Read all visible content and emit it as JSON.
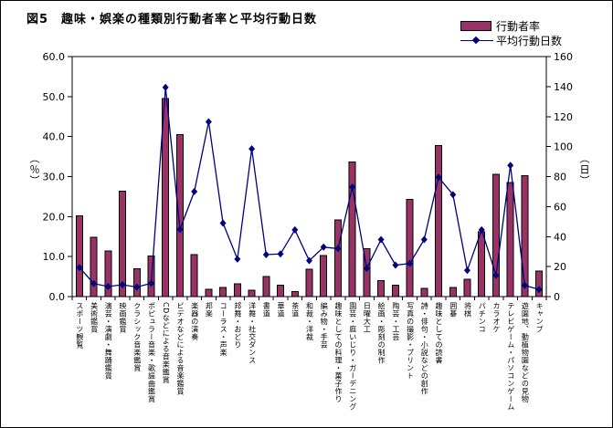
{
  "title": "図5　趣味・娯楽の種類別行動者率と平均行動日数",
  "legend": {
    "items": [
      {
        "label": "行動者率",
        "type": "bar",
        "color": "#993366"
      },
      {
        "label": "平均行動日数",
        "type": "line",
        "color": "#000080"
      }
    ]
  },
  "chart_data": {
    "type": "bar",
    "title": "図5　趣味・娯楽の種類別行動者率と平均行動日数",
    "grid": false,
    "legend_position": "top-right",
    "categories": [
      "スポーツ観覧",
      "美術鑑賞",
      "演芸・演劇・舞踊鑑賞",
      "映画鑑賞",
      "クラシック音楽鑑賞",
      "ポピュラー音楽・歌謡曲鑑賞",
      "CDなどによる音楽鑑賞",
      "ビデオなどによる音楽鑑賞",
      "楽器の演奏",
      "邦楽",
      "コーラス・声楽",
      "邦舞・おどり",
      "洋舞・社交ダンス",
      "書道",
      "華道",
      "茶道",
      "和裁・洋裁",
      "編み物・手芸",
      "趣味としての料理・菓子作り",
      "園芸・庭いじり・ガーデニング",
      "日曜大工",
      "絵画・彫刻の制作",
      "陶芸・工芸",
      "写真の撮影・プリント",
      "詩・俳句・小説などの創作",
      "趣味としての読書",
      "囲碁",
      "将棋",
      "パチンコ",
      "カラオケ",
      "テレビゲーム・パソコンゲーム",
      "遊園地、動植物園などの見物",
      "キャンプ"
    ],
    "series": [
      {
        "name": "行動者率",
        "type": "bar",
        "axis": "left",
        "color": "#993366",
        "values": [
          20.2,
          14.8,
          11.4,
          26.3,
          7.0,
          10.2,
          49.5,
          40.5,
          10.5,
          1.8,
          2.3,
          3.2,
          1.6,
          5.0,
          2.9,
          1.3,
          6.9,
          10.3,
          19.2,
          33.6,
          12.0,
          4.0,
          2.9,
          24.3,
          2.0,
          37.8,
          2.3,
          4.3,
          16.2,
          30.6,
          28.5,
          30.2,
          6.4
        ]
      },
      {
        "name": "平均行動日数",
        "type": "line",
        "axis": "right",
        "color": "#000080",
        "marker": "diamond",
        "values": [
          19.4,
          8.7,
          6.7,
          7.9,
          6.3,
          8.9,
          139.5,
          44.8,
          70,
          116.5,
          49,
          25,
          98.5,
          28,
          28.4,
          44.5,
          24,
          33,
          32,
          73,
          18.8,
          38,
          21,
          22,
          38,
          79.5,
          68,
          17.5,
          44.5,
          14.2,
          87.5,
          7.5,
          4.7
        ]
      }
    ],
    "y_left": {
      "unit": "（％）",
      "min": 0,
      "max": 60,
      "step": 10,
      "tick_format": "one-decimal",
      "ticks": [
        "0.0",
        "10.0",
        "20.0",
        "30.0",
        "40.0",
        "50.0",
        "60.0"
      ]
    },
    "y_right": {
      "unit": "（日）",
      "min": 0,
      "max": 160,
      "step": 20,
      "ticks": [
        "0",
        "20",
        "40",
        "60",
        "80",
        "100",
        "120",
        "140",
        "160"
      ]
    }
  }
}
